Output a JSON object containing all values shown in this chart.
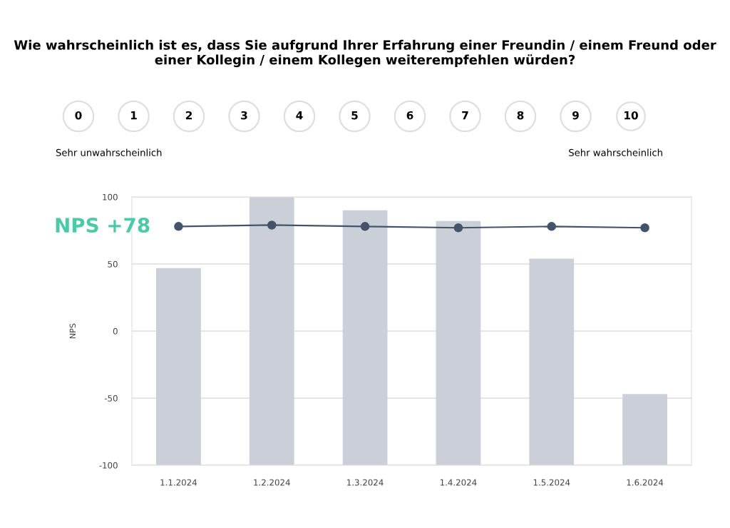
{
  "chart_data": {
    "type": "bar",
    "title": "Wie wahrscheinlich ist es, dass Sie aufgrund Ihrer Erfahrung einer Freundin / einem Freund oder einer Kollegin / einem Kollegen weiterempfehlen würden?",
    "ylabel": "NPS",
    "categories": [
      "1.1.2024",
      "1.2.2024",
      "1.3.2024",
      "1.4.2024",
      "1.5.2024",
      "1.6.2024"
    ],
    "series": [
      {
        "color": "#cbd0d8",
        "base": [
          -100,
          -100,
          -100,
          -100,
          -100,
          -100
        ],
        "values": [
          147,
          200,
          190,
          182,
          154,
          53
        ]
      },
      {
        "type": "line",
        "color": "#44546a",
        "values": [
          78,
          79,
          78,
          77,
          78,
          77
        ]
      }
    ],
    "ylim": [
      -100,
      100
    ],
    "yticks": [
      -100,
      -50,
      0,
      50,
      100
    ],
    "grid": "y",
    "marker": "circle",
    "line_style": "solid",
    "legend": false,
    "annotations": [
      "0",
      "1",
      "2",
      "3",
      "4",
      "5",
      "6",
      "7",
      "8",
      "9",
      "10",
      "Sehr unwahrscheinlich",
      "Sehr wahrscheinlich",
      "NPS +78"
    ]
  }
}
